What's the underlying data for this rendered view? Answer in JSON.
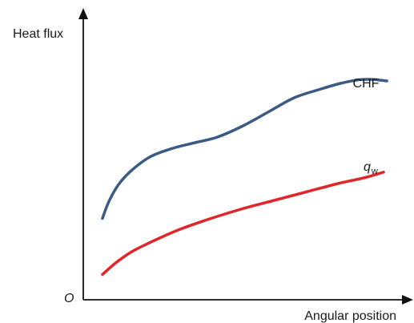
{
  "chart_data": {
    "type": "line",
    "title": "",
    "ylabel": "Heat flux",
    "xlabel": "Angular position",
    "origin_label": "O",
    "xlim": [
      0,
      1
    ],
    "ylim": [
      0,
      1
    ],
    "grid": false,
    "legend": "none",
    "series": [
      {
        "name": "CHF",
        "color": "#3c5a86",
        "x": [
          0.06,
          0.08,
          0.11,
          0.15,
          0.21,
          0.28,
          0.35,
          0.42,
          0.5,
          0.58,
          0.66,
          0.74,
          0.8,
          0.84,
          0.87,
          0.91,
          0.95
        ],
        "values": [
          0.29,
          0.35,
          0.41,
          0.46,
          0.51,
          0.54,
          0.56,
          0.58,
          0.62,
          0.67,
          0.72,
          0.75,
          0.77,
          0.78,
          0.785,
          0.785,
          0.78
        ]
      },
      {
        "name": "q_w",
        "label_main": "q",
        "label_sub": "w",
        "color": "#e0262b",
        "x": [
          0.06,
          0.1,
          0.15,
          0.22,
          0.3,
          0.4,
          0.5,
          0.6,
          0.7,
          0.8,
          0.88,
          0.94
        ],
        "values": [
          0.09,
          0.13,
          0.17,
          0.21,
          0.25,
          0.29,
          0.325,
          0.355,
          0.385,
          0.415,
          0.435,
          0.455
        ]
      }
    ]
  }
}
